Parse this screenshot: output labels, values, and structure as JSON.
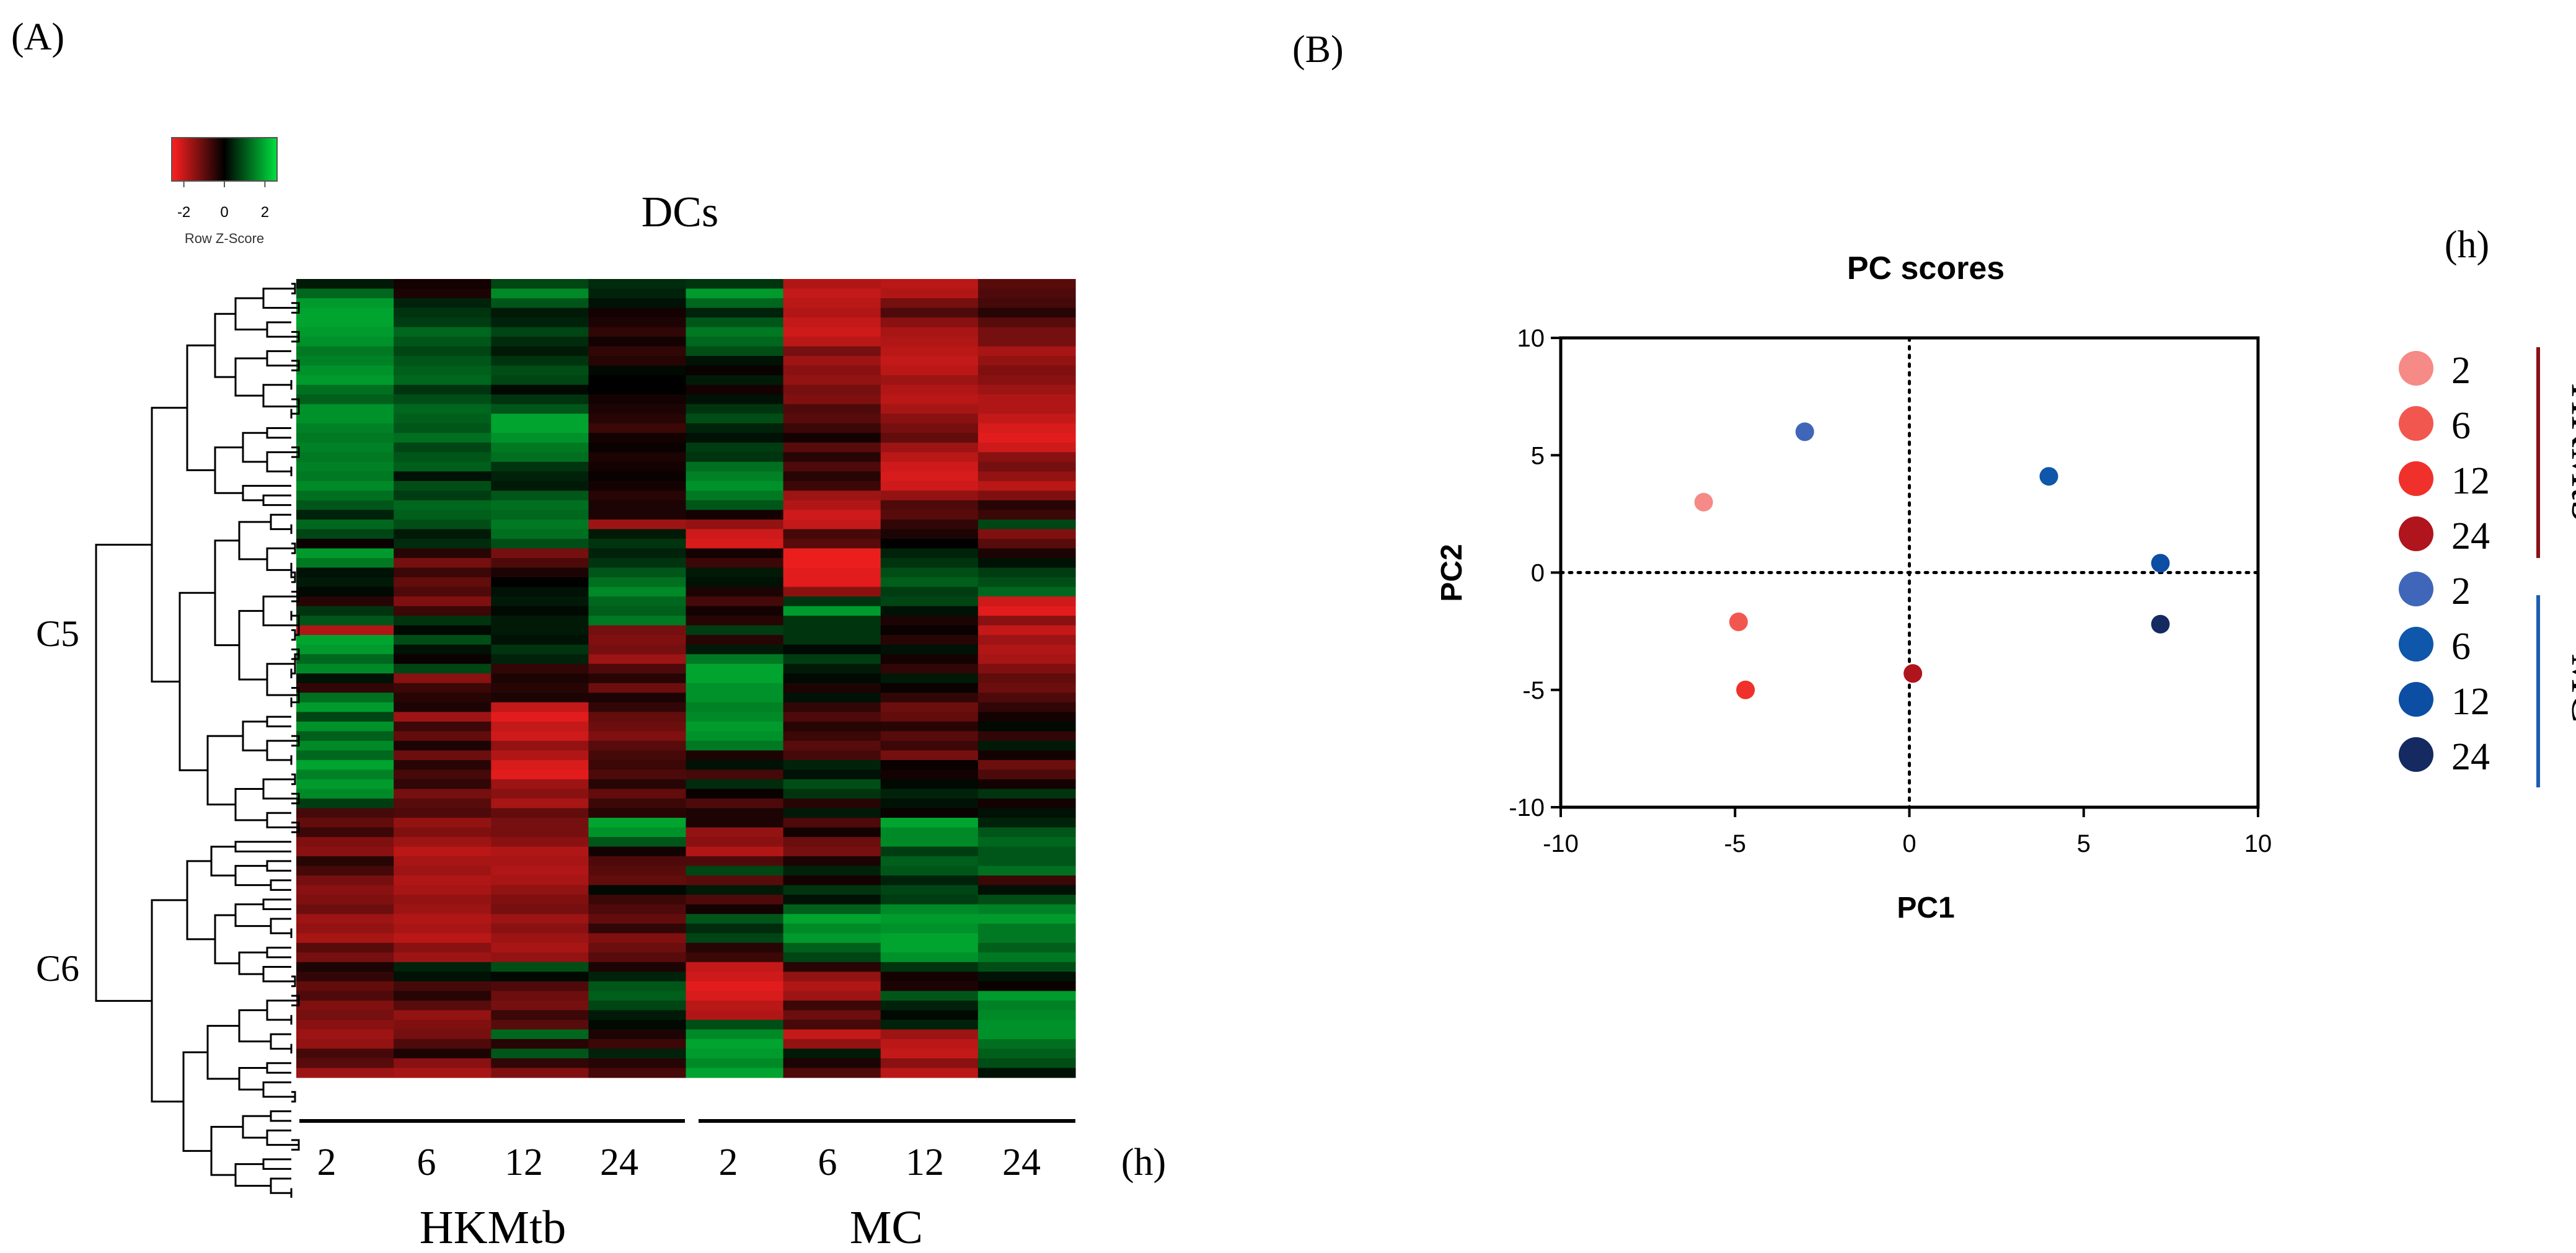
{
  "colors": {
    "heat_low": "#ff2020",
    "heat_mid": "#000000",
    "heat_high": "#00e040",
    "hkmtb": [
      "#f58a86",
      "#f2574f",
      "#f0302a",
      "#b0141d"
    ],
    "mc": [
      "#3f66b8",
      "#0e57aa",
      "#0b4ea3",
      "#152a60"
    ],
    "hkmtb_bar": "#8b1016",
    "mc_bar": "#1f5db0",
    "axis": "#000000"
  },
  "chart_data": [
    {
      "type": "heatmap",
      "panel_label": "(A)",
      "title": "DCs",
      "color_key": {
        "ticks": [
          "-2",
          "0",
          "2"
        ],
        "tick_values": [
          -2,
          0,
          2
        ],
        "range": [
          -2.6,
          2.6
        ],
        "label": "Row Z-Score"
      },
      "column_labels": [
        "2",
        "6",
        "12",
        "24",
        "2",
        "6",
        "12",
        "24"
      ],
      "time_unit": "(h)",
      "groups": [
        {
          "name": "HKMtb",
          "columns": [
            0,
            1,
            2,
            3
          ]
        },
        {
          "name": "MC",
          "columns": [
            4,
            5,
            6,
            7
          ]
        }
      ],
      "clusters": [
        {
          "name": "C5",
          "rows": [
            0,
            57
          ]
        },
        {
          "name": "C6",
          "rows": [
            58,
            95
          ]
        }
      ],
      "rows": [
        [
          0.3,
          -0.2,
          0.8,
          0.5,
          0.6,
          -1.8,
          -1.9,
          -0.9
        ],
        [
          1.2,
          -0.3,
          1.6,
          0.4,
          1.8,
          -2.0,
          -1.8,
          -0.8
        ],
        [
          1.8,
          0.4,
          1.0,
          0.2,
          1.2,
          -1.9,
          -1.2,
          -0.7
        ],
        [
          1.9,
          0.6,
          0.3,
          -0.2,
          0.4,
          -1.8,
          -0.8,
          -0.4
        ],
        [
          1.9,
          0.7,
          0.4,
          -0.3,
          1.0,
          -2.0,
          -1.4,
          -0.9
        ],
        [
          1.8,
          1.2,
          0.8,
          -0.5,
          1.4,
          -2.1,
          -1.7,
          -1.2
        ],
        [
          1.7,
          1.0,
          0.5,
          -0.2,
          1.2,
          -1.9,
          -1.8,
          -1.2
        ],
        [
          1.4,
          0.8,
          0.3,
          -0.5,
          0.9,
          -1.2,
          -1.9,
          -1.7
        ],
        [
          1.5,
          1.0,
          0.6,
          -0.4,
          0.2,
          -1.6,
          -2.0,
          -1.5
        ],
        [
          1.7,
          1.1,
          0.9,
          0.1,
          -0.1,
          -1.4,
          -1.9,
          -1.3
        ],
        [
          1.8,
          1.2,
          0.8,
          0.0,
          0.3,
          -1.5,
          -1.6,
          -1.4
        ],
        [
          1.3,
          0.6,
          0.1,
          0.0,
          -0.2,
          -1.2,
          -1.8,
          -1.6
        ],
        [
          1.1,
          0.9,
          0.6,
          -0.2,
          0.2,
          -1.3,
          -1.9,
          -1.8
        ],
        [
          1.7,
          1.2,
          1.0,
          -0.3,
          0.6,
          -0.8,
          -1.7,
          -1.8
        ],
        [
          1.7,
          1.1,
          1.9,
          -0.4,
          0.9,
          -0.9,
          -1.4,
          -2.0
        ],
        [
          1.5,
          1.0,
          1.9,
          -0.6,
          0.4,
          -0.6,
          -1.2,
          -2.2
        ],
        [
          1.4,
          1.3,
          1.7,
          -0.2,
          0.2,
          -0.2,
          -1.0,
          -2.3
        ],
        [
          1.5,
          0.8,
          1.4,
          -0.1,
          0.7,
          -0.9,
          -1.6,
          -2.1
        ],
        [
          1.4,
          1.0,
          1.3,
          -0.3,
          0.6,
          -0.4,
          -1.9,
          -1.4
        ],
        [
          1.5,
          1.1,
          0.6,
          -0.2,
          1.3,
          -0.8,
          -2.1,
          -1.2
        ],
        [
          1.4,
          0.2,
          0.4,
          -0.1,
          1.5,
          -0.4,
          -2.2,
          -1.5
        ],
        [
          1.6,
          0.9,
          0.3,
          -0.2,
          1.7,
          -0.6,
          -2.1,
          -1.9
        ],
        [
          1.3,
          0.7,
          1.0,
          -0.4,
          1.4,
          -1.6,
          -1.5,
          -1.3
        ],
        [
          1.0,
          1.2,
          1.3,
          -0.3,
          1.0,
          -1.8,
          -0.8,
          -0.4
        ],
        [
          0.4,
          1.1,
          1.2,
          -0.3,
          -0.2,
          -2.1,
          -0.9,
          -0.6
        ],
        [
          1.2,
          0.9,
          1.4,
          -1.6,
          -1.5,
          -2.0,
          -0.5,
          0.8
        ],
        [
          0.8,
          0.3,
          1.3,
          0.3,
          -2.1,
          -0.7,
          -0.3,
          -1.3
        ],
        [
          -0.1,
          0.5,
          0.9,
          0.6,
          -2.2,
          -0.9,
          0.0,
          -0.9
        ],
        [
          1.8,
          -0.4,
          -1.2,
          0.4,
          -0.2,
          -2.4,
          0.4,
          -0.3
        ],
        [
          1.4,
          -1.2,
          -0.8,
          0.6,
          -0.6,
          -2.4,
          0.6,
          0.2
        ],
        [
          0.2,
          -0.6,
          -0.3,
          1.0,
          0.3,
          -2.3,
          0.9,
          0.7
        ],
        [
          0.3,
          -1.0,
          0.0,
          1.3,
          0.2,
          -2.3,
          1.1,
          0.9
        ],
        [
          0.1,
          -0.8,
          0.2,
          1.6,
          -0.3,
          -1.4,
          0.7,
          1.2
        ],
        [
          -0.4,
          -1.3,
          0.3,
          1.2,
          -0.7,
          0.6,
          0.8,
          -2.1
        ],
        [
          0.6,
          -0.6,
          0.1,
          1.1,
          -0.2,
          1.8,
          0.2,
          -2.3
        ],
        [
          1.0,
          0.6,
          0.3,
          1.4,
          -0.4,
          0.6,
          -0.3,
          -1.4
        ],
        [
          -1.8,
          0.1,
          0.3,
          -1.2,
          0.7,
          0.6,
          -0.1,
          -2.0
        ],
        [
          1.9,
          0.9,
          0.2,
          -1.3,
          -0.4,
          0.6,
          -0.4,
          -1.6
        ],
        [
          1.8,
          0.2,
          0.6,
          -1.2,
          0.3,
          0.1,
          0.2,
          -1.8
        ],
        [
          1.2,
          -0.1,
          0.4,
          -1.6,
          1.4,
          0.7,
          -0.2,
          -1.7
        ],
        [
          1.6,
          0.8,
          -0.5,
          -0.8,
          1.9,
          0.3,
          -0.5,
          -1.3
        ],
        [
          0.2,
          -1.4,
          -0.3,
          -0.4,
          1.9,
          0.1,
          0.3,
          -1.0
        ],
        [
          -0.5,
          -0.6,
          -0.4,
          -1.1,
          1.7,
          -0.3,
          -0.1,
          -1.1
        ],
        [
          1.3,
          -0.4,
          -0.3,
          -0.3,
          1.7,
          0.2,
          -0.5,
          -0.8
        ],
        [
          1.8,
          -0.3,
          -2.0,
          -0.5,
          1.5,
          -0.5,
          -1.1,
          -0.5
        ],
        [
          0.8,
          -1.6,
          -2.3,
          -1.0,
          1.6,
          -0.8,
          -1.0,
          -0.2
        ],
        [
          1.7,
          -0.6,
          -2.0,
          -1.1,
          1.8,
          -0.4,
          -0.4,
          0.1
        ],
        [
          1.1,
          -1.0,
          -2.1,
          -1.3,
          1.7,
          -0.6,
          -0.9,
          -0.5
        ],
        [
          1.6,
          -0.3,
          -1.5,
          -0.9,
          1.4,
          -0.9,
          -0.6,
          0.3
        ],
        [
          1.2,
          -1.1,
          -1.8,
          -0.7,
          -0.3,
          -0.7,
          -1.2,
          -0.2
        ],
        [
          1.9,
          -0.4,
          -2.2,
          -0.6,
          0.2,
          0.4,
          -0.1,
          -1.1
        ],
        [
          1.5,
          -0.7,
          -2.3,
          -0.8,
          -0.7,
          0.2,
          -0.2,
          -0.8
        ],
        [
          1.8,
          -0.5,
          -1.6,
          -0.4,
          0.5,
          0.9,
          0.1,
          -0.2
        ],
        [
          1.6,
          -1.2,
          -1.4,
          -1.0,
          -0.1,
          0.6,
          0.4,
          0.6
        ],
        [
          0.7,
          -0.9,
          -1.7,
          -0.6,
          -0.8,
          -0.4,
          0.2,
          -0.2
        ],
        [
          -0.7,
          -0.8,
          -1.0,
          -0.4,
          -0.3,
          0.3,
          -0.1,
          0.2
        ],
        [
          -1.0,
          -1.5,
          -1.2,
          1.9,
          -0.3,
          -0.8,
          1.9,
          0.4
        ],
        [
          -0.6,
          -1.3,
          -1.2,
          1.7,
          -1.5,
          -0.2,
          1.6,
          1.0
        ],
        [
          -1.3,
          -1.6,
          -1.4,
          1.0,
          -1.4,
          -1.1,
          1.6,
          1.2
        ],
        [
          -1.4,
          -1.9,
          -1.8,
          -0.2,
          -1.8,
          -1.2,
          0.7,
          1.0
        ],
        [
          -0.4,
          -1.7,
          -1.7,
          -0.8,
          -0.8,
          -0.3,
          1.1,
          1.0
        ],
        [
          -0.7,
          -1.6,
          -1.8,
          -0.9,
          0.8,
          0.4,
          1.0,
          1.3
        ],
        [
          -1.2,
          -1.8,
          -1.7,
          -1.0,
          -0.9,
          -0.2,
          0.4,
          -0.6
        ],
        [
          -1.4,
          -1.7,
          -1.5,
          0.1,
          0.3,
          0.6,
          0.8,
          0.2
        ],
        [
          -1.3,
          -1.5,
          -1.3,
          -0.6,
          -0.8,
          0.2,
          0.7,
          0.9
        ],
        [
          -1.1,
          -1.6,
          -1.2,
          -0.8,
          -0.2,
          1.1,
          1.6,
          1.5
        ],
        [
          -1.6,
          -1.8,
          -1.6,
          -1.0,
          1.0,
          1.9,
          1.8,
          1.8
        ],
        [
          -1.5,
          -1.7,
          -1.4,
          -0.5,
          0.5,
          1.6,
          1.7,
          1.4
        ],
        [
          -1.7,
          -1.9,
          -1.6,
          -1.3,
          0.8,
          1.8,
          1.9,
          1.4
        ],
        [
          -0.9,
          -1.4,
          -1.7,
          -1.1,
          -0.4,
          1.1,
          1.9,
          1.1
        ],
        [
          -1.2,
          -1.6,
          -1.5,
          -0.9,
          -0.6,
          0.8,
          1.7,
          1.4
        ],
        [
          -0.3,
          0.4,
          0.9,
          -0.3,
          -2.0,
          -0.4,
          0.6,
          0.9
        ],
        [
          -0.5,
          0.2,
          0.1,
          0.4,
          -2.1,
          -1.5,
          -0.2,
          0.2
        ],
        [
          -1.0,
          -0.7,
          -0.8,
          1.0,
          -2.3,
          -1.8,
          -0.3,
          -0.1
        ],
        [
          -0.8,
          -0.4,
          -1.1,
          1.1,
          -2.2,
          -1.6,
          1.0,
          1.8
        ],
        [
          -1.3,
          -0.9,
          -1.2,
          0.8,
          -1.9,
          -0.6,
          0.4,
          1.5
        ],
        [
          -1.2,
          -1.5,
          -0.6,
          0.3,
          -1.8,
          -1.1,
          0.1,
          1.6
        ],
        [
          -1.4,
          -1.3,
          -0.9,
          0.1,
          0.9,
          -0.7,
          0.4,
          1.7
        ],
        [
          -1.6,
          -1.2,
          1.2,
          -0.3,
          1.6,
          -2.0,
          -1.6,
          1.7
        ],
        [
          -1.5,
          -0.8,
          -0.4,
          -0.6,
          1.9,
          -1.5,
          -1.9,
          1.3
        ],
        [
          -0.7,
          -0.3,
          1.0,
          0.4,
          1.8,
          0.3,
          -2.0,
          1.1
        ],
        [
          -0.9,
          -1.4,
          -0.5,
          -0.4,
          1.6,
          -0.3,
          -1.4,
          0.9
        ],
        [
          -1.6,
          -1.7,
          -1.3,
          -0.7,
          1.9,
          -0.8,
          -1.9,
          0.2
        ]
      ]
    },
    {
      "type": "scatter",
      "panel_label": "(B)",
      "title": "PC scores",
      "xlabel": "PC1",
      "ylabel": "PC2",
      "xlim": [
        -10,
        10
      ],
      "ylim": [
        -10,
        10
      ],
      "xticks": [
        -10,
        -5,
        0,
        5,
        10
      ],
      "yticks": [
        -10,
        -5,
        0,
        5,
        10
      ],
      "reference_lines": {
        "x": 0,
        "y": 0,
        "style": "dotted"
      },
      "legend_title": "(h)",
      "legend_groups": [
        {
          "name": "HKMtb",
          "entries": [
            "2",
            "6",
            "12",
            "24"
          ]
        },
        {
          "name": "MC",
          "entries": [
            "2",
            "6",
            "12",
            "24"
          ]
        }
      ],
      "series": [
        {
          "group": "HKMtb",
          "time": "2",
          "x": -5.9,
          "y": 3.0,
          "color": "#f58a86"
        },
        {
          "group": "HKMtb",
          "time": "6",
          "x": -4.9,
          "y": -2.1,
          "color": "#f2574f"
        },
        {
          "group": "HKMtb",
          "time": "12",
          "x": -4.7,
          "y": -5.0,
          "color": "#f0302a"
        },
        {
          "group": "HKMtb",
          "time": "24",
          "x": 0.1,
          "y": -4.3,
          "color": "#b0141d"
        },
        {
          "group": "MC",
          "time": "2",
          "x": -3.0,
          "y": 6.0,
          "color": "#3f66b8"
        },
        {
          "group": "MC",
          "time": "6",
          "x": 4.0,
          "y": 4.1,
          "color": "#0e57aa"
        },
        {
          "group": "MC",
          "time": "12",
          "x": 7.2,
          "y": 0.4,
          "color": "#0b4ea3"
        },
        {
          "group": "MC",
          "time": "24",
          "x": 7.2,
          "y": -2.2,
          "color": "#152a60"
        }
      ]
    }
  ]
}
